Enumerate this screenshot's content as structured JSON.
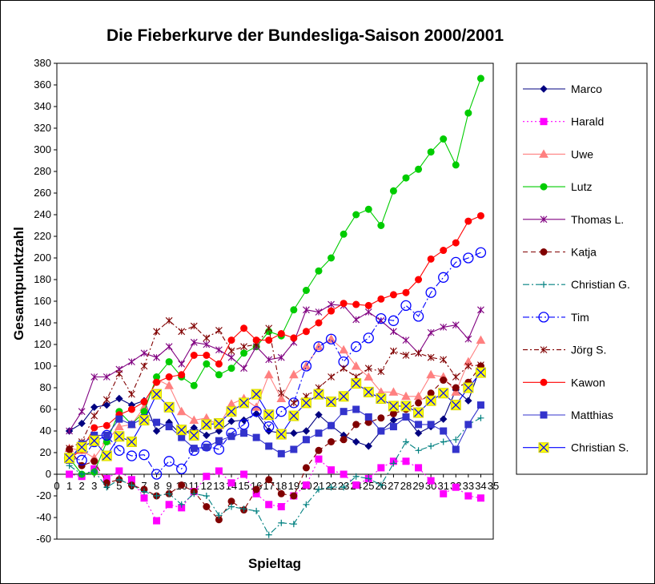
{
  "chart_data": {
    "type": "line",
    "title": "Die Fieberkurve der Bundesliga-Saison 2000/2001",
    "xlabel": "Spieltag",
    "ylabel": "Gesamtpunktzahl",
    "ylim": [
      -60,
      380
    ],
    "y_ticks": [
      -60,
      -40,
      -20,
      0,
      20,
      40,
      60,
      80,
      100,
      120,
      140,
      160,
      180,
      200,
      220,
      240,
      260,
      280,
      300,
      320,
      340,
      360,
      380
    ],
    "x_tick_labels": [
      "0",
      "1",
      "2",
      "3",
      "4",
      "5",
      "6",
      "7",
      "8",
      "9",
      "10",
      "11",
      "12",
      "13",
      "14",
      "15",
      "16",
      "17",
      "18",
      "19",
      "20",
      "21",
      "22",
      "23",
      "24",
      "25",
      "26",
      "27",
      "28",
      "29",
      "30",
      "31",
      "32",
      "33",
      "34",
      "35"
    ],
    "x": [
      1,
      2,
      3,
      4,
      5,
      6,
      7,
      8,
      9,
      10,
      11,
      12,
      13,
      14,
      15,
      16,
      17,
      18,
      19,
      20,
      21,
      22,
      23,
      24,
      25,
      26,
      27,
      28,
      29,
      30,
      31,
      32,
      33,
      34
    ],
    "grid": false,
    "legend_position": "right",
    "series": [
      {
        "name": "Marco",
        "color": "#000080",
        "dash": "",
        "marker": "diamond",
        "values": [
          40,
          47,
          62,
          64,
          70,
          64,
          68,
          40,
          48,
          36,
          43,
          36,
          40,
          49,
          50,
          56,
          40,
          38,
          38,
          40,
          55,
          45,
          36,
          30,
          26,
          40,
          50,
          53,
          38,
          44,
          51,
          78,
          68,
          100
        ]
      },
      {
        "name": "Harald",
        "color": "#ff00ff",
        "dash": "2,3",
        "marker": "square",
        "values": [
          0,
          -2,
          5,
          -4,
          3,
          -5,
          -22,
          -43,
          -28,
          -31,
          -16,
          -2,
          3,
          -8,
          0,
          -18,
          -28,
          -30,
          -20,
          -10,
          14,
          4,
          0,
          -10,
          -4,
          6,
          12,
          12,
          6,
          -6,
          -18,
          -12,
          -20,
          -22
        ]
      },
      {
        "name": "Uwe",
        "color": "#ff8080",
        "dash": "",
        "marker": "triangle",
        "values": [
          24,
          22,
          15,
          31,
          44,
          46,
          62,
          88,
          82,
          58,
          50,
          52,
          45,
          65,
          70,
          62,
          92,
          70,
          92,
          100,
          118,
          125,
          115,
          100,
          90,
          76,
          76,
          72,
          72,
          92,
          90,
          76,
          104,
          124
        ]
      },
      {
        "name": "Lutz",
        "color": "#00cc00",
        "dash": "",
        "marker": "circle",
        "values": [
          15,
          0,
          2,
          30,
          58,
          46,
          58,
          90,
          104,
          90,
          82,
          102,
          92,
          98,
          112,
          118,
          132,
          128,
          152,
          170,
          188,
          200,
          222,
          240,
          245,
          230,
          262,
          274,
          282,
          298,
          310,
          286,
          334,
          366
        ]
      },
      {
        "name": "Thomas L.",
        "color": "#800080",
        "dash": "",
        "marker": "asterisk",
        "values": [
          40,
          58,
          90,
          90,
          97,
          104,
          112,
          108,
          118,
          102,
          122,
          120,
          115,
          108,
          98,
          118,
          106,
          108,
          122,
          152,
          150,
          157,
          156,
          143,
          150,
          142,
          132,
          124,
          112,
          131,
          136,
          138,
          125,
          152
        ]
      },
      {
        "name": "Katja",
        "color": "#800000",
        "dash": "6,4",
        "marker": "circle",
        "values": [
          23,
          8,
          12,
          -8,
          -5,
          -10,
          -14,
          -20,
          -18,
          -10,
          -16,
          -30,
          -42,
          -25,
          -33,
          -14,
          -5,
          -18,
          -20,
          6,
          22,
          30,
          32,
          46,
          48,
          52,
          56,
          60,
          66,
          75,
          87,
          80,
          85,
          100
        ]
      },
      {
        "name": "Christian G.",
        "color": "#008080",
        "dash": "8,3,2,3",
        "marker": "plus",
        "values": [
          8,
          0,
          3,
          -12,
          -5,
          -10,
          -16,
          -20,
          -18,
          -28,
          -18,
          -20,
          -38,
          -30,
          -32,
          -34,
          -56,
          -45,
          -46,
          -28,
          -14,
          -12,
          -12,
          -2,
          -4,
          -10,
          10,
          30,
          22,
          26,
          30,
          32,
          46,
          52
        ]
      },
      {
        "name": "Tim",
        "color": "#0000ff",
        "dash": "8,3,2,3",
        "marker": "ocircle",
        "values": [
          15,
          13,
          30,
          36,
          22,
          17,
          18,
          0,
          12,
          5,
          22,
          26,
          23,
          38,
          46,
          58,
          44,
          58,
          66,
          100,
          118,
          125,
          104,
          118,
          126,
          144,
          142,
          156,
          146,
          168,
          182,
          196,
          200,
          205
        ]
      },
      {
        "name": "Jörg S.",
        "color": "#800000",
        "dash": "6,3,2,3",
        "marker": "asterisk",
        "values": [
          24,
          30,
          54,
          69,
          93,
          74,
          100,
          132,
          142,
          132,
          137,
          126,
          133,
          114,
          118,
          120,
          135,
          75,
          66,
          72,
          80,
          90,
          98,
          90,
          98,
          95,
          114,
          110,
          112,
          108,
          106,
          90,
          100,
          101
        ]
      },
      {
        "name": "Kawon",
        "color": "#ff0000",
        "dash": "",
        "marker": "circle",
        "values": [
          14,
          23,
          43,
          45,
          55,
          60,
          67,
          85,
          90,
          92,
          110,
          110,
          102,
          124,
          135,
          124,
          124,
          130,
          126,
          132,
          140,
          151,
          158,
          157,
          156,
          162,
          166,
          168,
          180,
          199,
          207,
          214,
          234,
          239
        ]
      },
      {
        "name": "Matthias",
        "color": "#3333cc",
        "dash": "",
        "marker": "square",
        "values": [
          13,
          28,
          36,
          36,
          51,
          46,
          52,
          48,
          44,
          34,
          24,
          25,
          31,
          35,
          38,
          34,
          26,
          19,
          23,
          32,
          38,
          45,
          58,
          60,
          53,
          40,
          44,
          53,
          46,
          46,
          40,
          23,
          46,
          64
        ]
      },
      {
        "name": "Christian S.",
        "color": "#0000ff",
        "dash": "",
        "marker": "xsquare",
        "values": [
          15,
          25,
          31,
          17,
          35,
          30,
          50,
          74,
          62,
          41,
          36,
          46,
          47,
          58,
          66,
          74,
          55,
          37,
          54,
          66,
          74,
          67,
          72,
          84,
          76,
          70,
          63,
          63,
          57,
          68,
          75,
          64,
          80,
          94
        ]
      }
    ]
  }
}
